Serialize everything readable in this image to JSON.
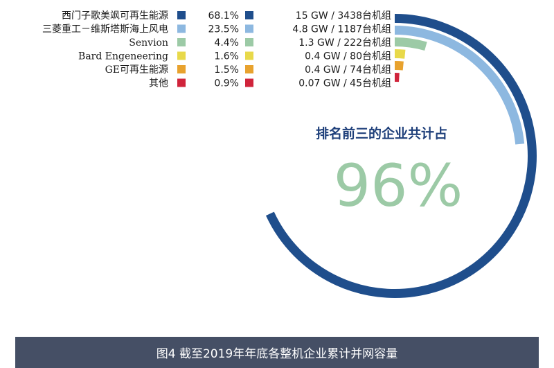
{
  "chart_data": {
    "type": "radial-bar",
    "headline": "排名前三的企业共计占",
    "highlight_value": "96%",
    "caption": "图4  截至2019年年底各整机企业累计并网容量",
    "series": [
      {
        "name": "西门子歌美飒可再生能源",
        "percent_label": "68.1%",
        "value": 68.1,
        "capacity_label": "15 GW / 3438台机组",
        "color": "#1f4e8c"
      },
      {
        "name": "三菱重工－维斯塔斯海上风电",
        "percent_label": "23.5%",
        "value": 23.5,
        "capacity_label": "4.8 GW / 1187台机组",
        "color": "#8db8e0"
      },
      {
        "name": "Senvion",
        "percent_label": "4.4%",
        "value": 4.4,
        "capacity_label": "1.3 GW / 222台机组",
        "color": "#9ccaa6"
      },
      {
        "name": "Bard Engeneering",
        "percent_label": "1.6%",
        "value": 1.6,
        "capacity_label": "0.4 GW / 80台机组",
        "color": "#e8d94a"
      },
      {
        "name": "GE可再生能源",
        "percent_label": "1.5%",
        "value": 1.5,
        "capacity_label": "0.4 GW / 74台机组",
        "color": "#e8a22e"
      },
      {
        "name": "其他",
        "percent_label": "0.9%",
        "value": 0.9,
        "capacity_label": "0.07 GW / 45台机组",
        "color": "#d0243b"
      }
    ]
  }
}
